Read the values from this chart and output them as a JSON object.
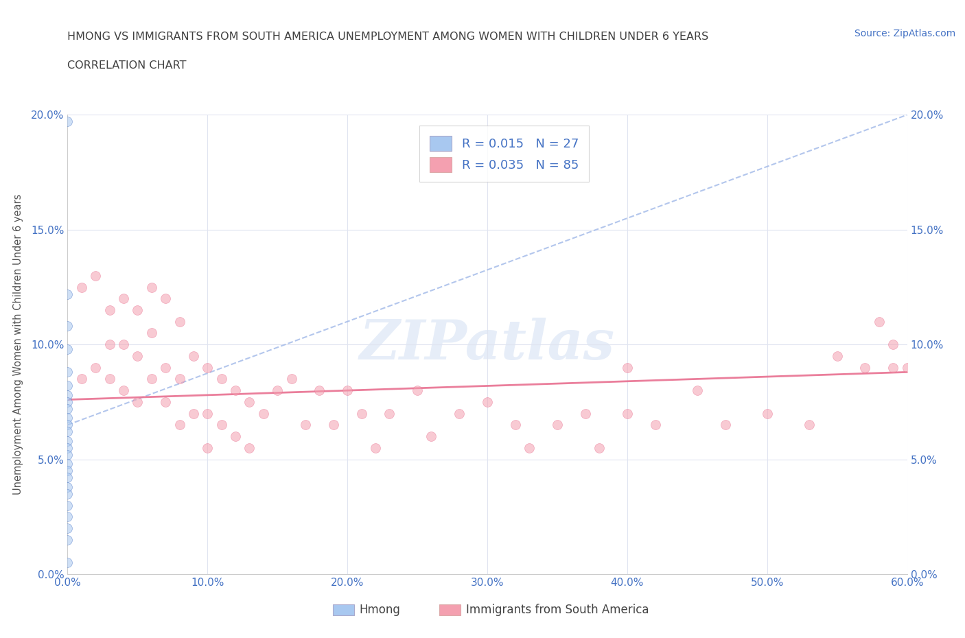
{
  "title_line1": "HMONG VS IMMIGRANTS FROM SOUTH AMERICA UNEMPLOYMENT AMONG WOMEN WITH CHILDREN UNDER 6 YEARS",
  "title_line2": "CORRELATION CHART",
  "source_text": "Source: ZipAtlas.com",
  "ylabel": "Unemployment Among Women with Children Under 6 years",
  "watermark": "ZIPatlas",
  "xlim": [
    0.0,
    0.6
  ],
  "ylim": [
    0.0,
    0.2
  ],
  "xticks": [
    0.0,
    0.1,
    0.2,
    0.3,
    0.4,
    0.5,
    0.6
  ],
  "yticks": [
    0.0,
    0.05,
    0.1,
    0.15,
    0.2
  ],
  "xtick_labels": [
    "0.0%",
    "10.0%",
    "20.0%",
    "30.0%",
    "40.0%",
    "50.0%",
    "60.0%"
  ],
  "ytick_labels": [
    "0.0%",
    "5.0%",
    "10.0%",
    "15.0%",
    "20.0%"
  ],
  "legend_label1": "Hmong",
  "legend_label2": "Immigrants from South America",
  "R1": 0.015,
  "N1": 27,
  "R2": 0.035,
  "N2": 85,
  "color_blue": "#a8c8f0",
  "color_pink": "#f4a0b0",
  "color_blue_dark": "#4472c4",
  "color_pink_dark": "#e87090",
  "trendline1_color": "#a0b8e8",
  "trendline2_color": "#e87090",
  "grid_color": "#e0e4f0",
  "title_color": "#404040",
  "axis_color": "#4472c4",
  "hmong_x": [
    0.0,
    0.0,
    0.0,
    0.0,
    0.0,
    0.0,
    0.0,
    0.0,
    0.0,
    0.0,
    0.0,
    0.0,
    0.0,
    0.0,
    0.0,
    0.0,
    0.0,
    0.0,
    0.0,
    0.0,
    0.0,
    0.0,
    0.0,
    0.0,
    0.0
  ],
  "hmong_y": [
    0.197,
    0.122,
    0.108,
    0.098,
    0.088,
    0.082,
    0.078,
    0.075,
    0.072,
    0.068,
    0.065,
    0.062,
    0.058,
    0.055,
    0.052,
    0.048,
    0.045,
    0.042,
    0.038,
    0.035,
    0.03,
    0.025,
    0.02,
    0.015,
    0.005
  ],
  "sa_x": [
    0.01,
    0.01,
    0.02,
    0.02,
    0.03,
    0.03,
    0.03,
    0.04,
    0.04,
    0.04,
    0.05,
    0.05,
    0.05,
    0.06,
    0.06,
    0.06,
    0.07,
    0.07,
    0.07,
    0.08,
    0.08,
    0.08,
    0.09,
    0.09,
    0.1,
    0.1,
    0.1,
    0.11,
    0.11,
    0.12,
    0.12,
    0.13,
    0.13,
    0.14,
    0.15,
    0.16,
    0.17,
    0.18,
    0.19,
    0.2,
    0.21,
    0.22,
    0.23,
    0.25,
    0.26,
    0.28,
    0.3,
    0.32,
    0.33,
    0.35,
    0.37,
    0.38,
    0.4,
    0.4,
    0.42,
    0.45,
    0.47,
    0.5,
    0.53,
    0.55,
    0.57,
    0.58,
    0.59,
    0.59,
    0.6
  ],
  "sa_y": [
    0.125,
    0.085,
    0.13,
    0.09,
    0.115,
    0.1,
    0.085,
    0.12,
    0.1,
    0.08,
    0.115,
    0.095,
    0.075,
    0.125,
    0.105,
    0.085,
    0.12,
    0.09,
    0.075,
    0.11,
    0.085,
    0.065,
    0.095,
    0.07,
    0.09,
    0.07,
    0.055,
    0.085,
    0.065,
    0.08,
    0.06,
    0.075,
    0.055,
    0.07,
    0.08,
    0.085,
    0.065,
    0.08,
    0.065,
    0.08,
    0.07,
    0.055,
    0.07,
    0.08,
    0.06,
    0.07,
    0.075,
    0.065,
    0.055,
    0.065,
    0.07,
    0.055,
    0.07,
    0.09,
    0.065,
    0.08,
    0.065,
    0.07,
    0.065,
    0.095,
    0.09,
    0.11,
    0.1,
    0.09,
    0.09
  ],
  "trendline1_x": [
    0.0,
    0.6
  ],
  "trendline1_y": [
    0.065,
    0.2
  ],
  "trendline2_x": [
    0.0,
    0.6
  ],
  "trendline2_y": [
    0.076,
    0.088
  ],
  "marker_size": 100,
  "alpha_scatter": 0.55,
  "background_color": "#ffffff"
}
